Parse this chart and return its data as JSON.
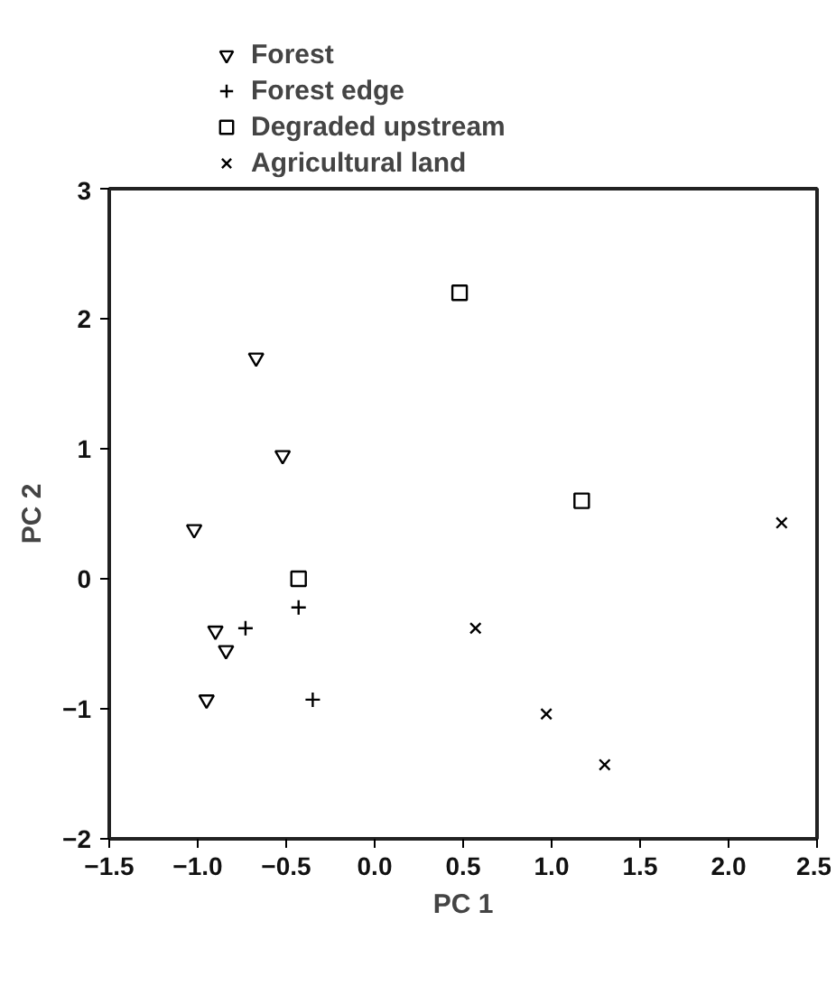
{
  "chart_data": {
    "type": "scatter",
    "xlabel": "PC 1",
    "ylabel": "PC 2",
    "xlim": [
      -1.5,
      2.5
    ],
    "ylim": [
      -2,
      3
    ],
    "xticks": [
      {
        "value": -1.5,
        "label": "−1.5"
      },
      {
        "value": -1.0,
        "label": "−1.0"
      },
      {
        "value": -0.5,
        "label": "−0.5"
      },
      {
        "value": 0,
        "label": "0.0"
      },
      {
        "value": 0.5,
        "label": "0.5"
      },
      {
        "value": 1.0,
        "label": "1.0"
      },
      {
        "value": 1.5,
        "label": "1.5"
      },
      {
        "value": 2.0,
        "label": "2.0"
      },
      {
        "value": 2.5,
        "label": "2.5"
      }
    ],
    "yticks": [
      {
        "value": -2,
        "label": "−2"
      },
      {
        "value": -1,
        "label": "−1"
      },
      0,
      1,
      2,
      3
    ],
    "grid": false,
    "legend": "top",
    "series": [
      {
        "name": "Forest",
        "color": "#000000",
        "marker": "triangle",
        "x": [
          -0.67,
          -0.52,
          -1.02,
          -0.9,
          -0.84,
          -0.95
        ],
        "values": [
          1.7,
          0.95,
          0.38,
          -0.4,
          -0.55,
          -0.93
        ]
      },
      {
        "name": "Forest edge",
        "color": "#000000",
        "marker": "cross",
        "x": [
          -0.73,
          -0.43,
          -0.35
        ],
        "values": [
          -0.38,
          -0.22,
          -0.93
        ]
      },
      {
        "name": "Degraded upstream",
        "color": "#000000",
        "marker": "square",
        "x": [
          0.48,
          1.17,
          -0.43
        ],
        "values": [
          2.2,
          0.6,
          0.0
        ]
      },
      {
        "name": "Agricultural land",
        "color": "#000000",
        "marker": "x",
        "x": [
          2.3,
          0.57,
          0.97,
          1.3
        ],
        "values": [
          0.43,
          -0.38,
          -1.04,
          -1.43
        ]
      }
    ]
  }
}
